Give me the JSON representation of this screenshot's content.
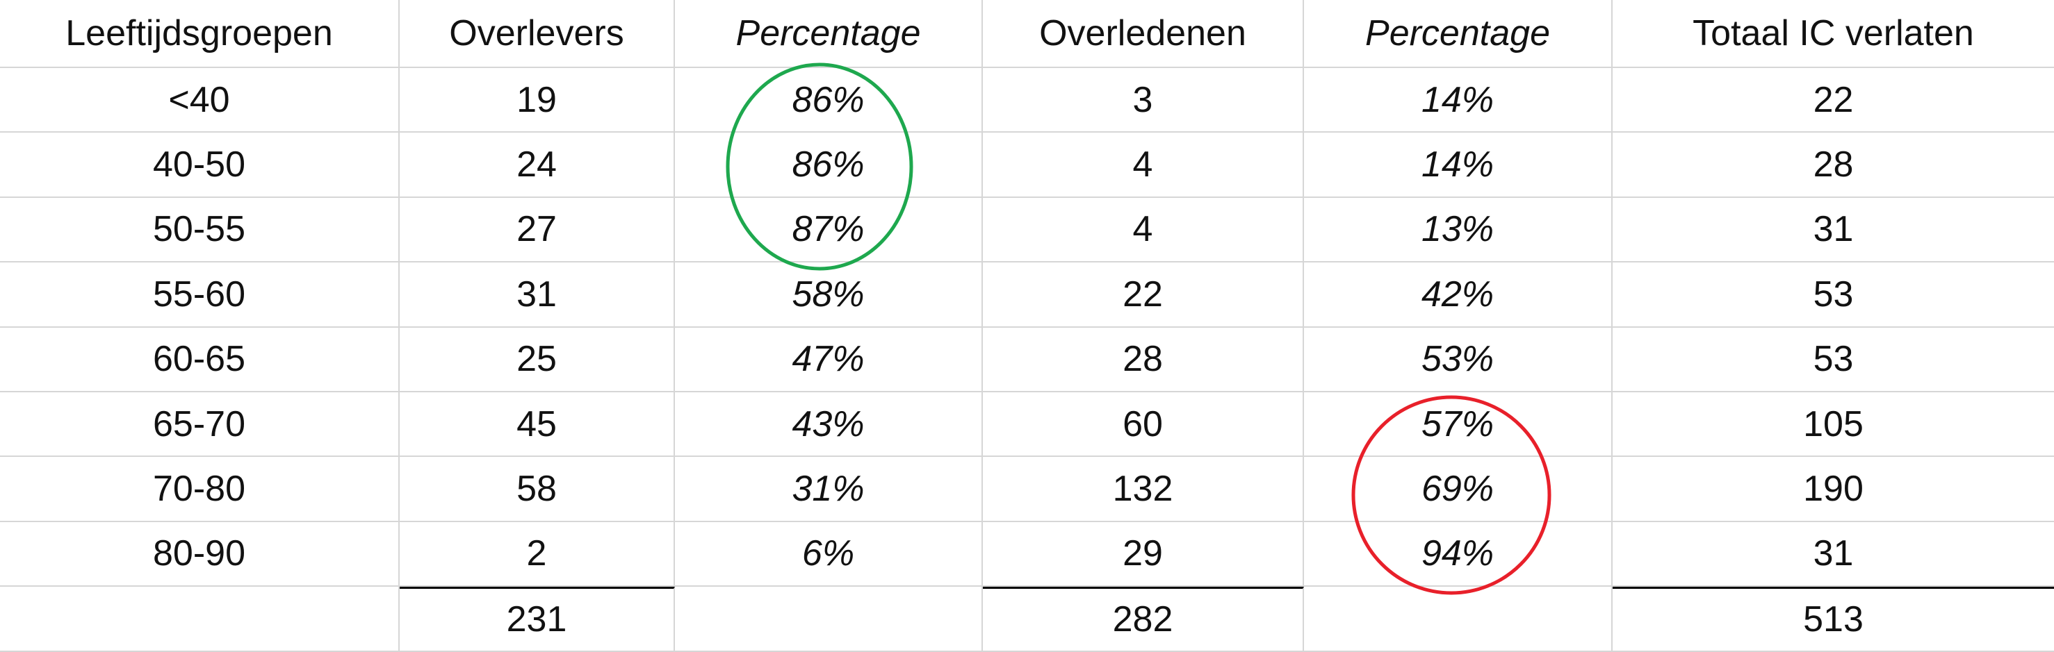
{
  "table": {
    "header": [
      "Leeftijdsgroepen",
      "Overlevers",
      "Percentage",
      "Overledenen",
      "Percentage",
      "Totaal IC verlaten"
    ],
    "rows": [
      [
        "<40",
        19,
        "86%",
        3,
        "14%",
        22
      ],
      [
        "40-50",
        24,
        "86%",
        4,
        "14%",
        28
      ],
      [
        "50-55",
        27,
        "87%",
        4,
        "13%",
        31
      ],
      [
        "55-60",
        31,
        "58%",
        22,
        "42%",
        53
      ],
      [
        "60-65",
        25,
        "47%",
        28,
        "53%",
        53
      ],
      [
        "65-70",
        45,
        "43%",
        60,
        "57%",
        105
      ],
      [
        "70-80",
        58,
        "31%",
        132,
        "69%",
        190
      ],
      [
        "80-90",
        2,
        "6%",
        29,
        "94%",
        31
      ]
    ],
    "totals": {
      "overlevers": 231,
      "overledenen": 282,
      "totaal": 513
    }
  }
}
